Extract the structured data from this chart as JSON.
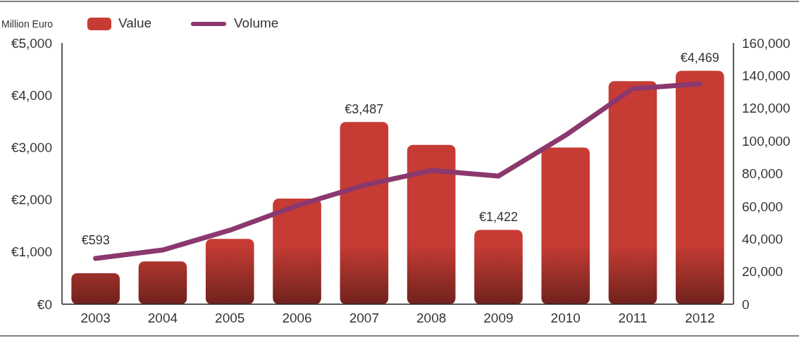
{
  "chart_data": {
    "type": "bar",
    "ylabel": "Million Euro",
    "categories": [
      "2003",
      "2004",
      "2005",
      "2006",
      "2007",
      "2008",
      "2009",
      "2010",
      "2011",
      "2012"
    ],
    "series": [
      {
        "name": "Value",
        "color": "#c63c34",
        "values": [
          593,
          820,
          1250,
          2020,
          3487,
          3050,
          1422,
          3000,
          4270,
          4469
        ],
        "value_labels": [
          "€593",
          null,
          null,
          null,
          "€3,487",
          null,
          "€1,422",
          null,
          null,
          "€4,469"
        ]
      },
      {
        "name": "Volume",
        "type": "line",
        "axis": "y2",
        "color": "#8b386e",
        "values": [
          28000,
          33200,
          45300,
          60400,
          72900,
          81900,
          78500,
          103500,
          132000,
          135000
        ]
      }
    ],
    "ylim": [
      0,
      5000
    ],
    "yticks": [
      {
        "value": 0,
        "label": "€0"
      },
      {
        "value": 1000,
        "label": "€1,000"
      },
      {
        "value": 2000,
        "label": "€2,000"
      },
      {
        "value": 3000,
        "label": "€3,000"
      },
      {
        "value": 4000,
        "label": "€4,000"
      },
      {
        "value": 5000,
        "label": "€5,000"
      }
    ],
    "y2lim": [
      0,
      160000
    ],
    "y2ticks": [
      0,
      {
        "value": 20000,
        "label": "20,000"
      },
      {
        "value": 40000,
        "label": "40,000"
      },
      {
        "value": 60000,
        "label": "60,000"
      },
      {
        "value": 80000,
        "label": "80,000"
      },
      {
        "value": 100000,
        "label": "100,000"
      },
      {
        "value": 120000,
        "label": "120,000"
      },
      {
        "value": 140000,
        "label": "140,000"
      },
      {
        "value": 160000,
        "label": "160,000"
      }
    ],
    "legend": "top left",
    "grid": false
  }
}
